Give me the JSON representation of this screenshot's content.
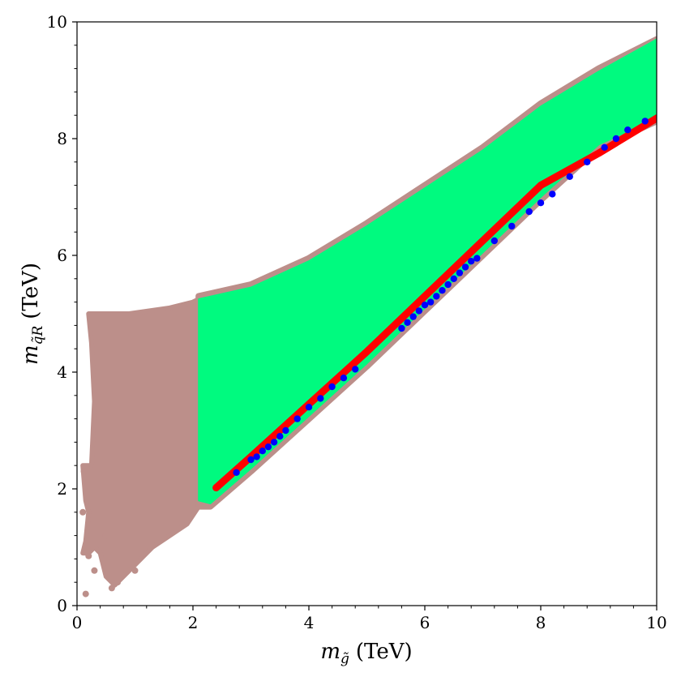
{
  "chart_data": {
    "type": "scatter",
    "title": "",
    "xlabel": {
      "symbol": "m",
      "subscript": "g̃",
      "unit": "(TeV)"
    },
    "ylabel": {
      "symbol": "m",
      "subscript": "q̃R",
      "unit": "(TeV)"
    },
    "xlim": [
      0,
      10
    ],
    "ylim": [
      0,
      10
    ],
    "xticks": [
      "0",
      "2",
      "4",
      "6",
      "8",
      "10"
    ],
    "yticks": [
      "0",
      "2",
      "4",
      "6",
      "8",
      "10"
    ],
    "grid": false,
    "legend": "none",
    "series": [
      {
        "color": "#bc8f8a",
        "kind": "region",
        "outline": [
          [
            0.1,
            0.9
          ],
          [
            0.15,
            1.1
          ],
          [
            0.2,
            1.6
          ],
          [
            0.15,
            1.8
          ],
          [
            0.1,
            2.4
          ],
          [
            0.25,
            2.4
          ],
          [
            0.3,
            3.5
          ],
          [
            0.25,
            4.5
          ],
          [
            0.2,
            5.0
          ],
          [
            0.9,
            5.0
          ],
          [
            1.6,
            5.1
          ],
          [
            2.0,
            5.2
          ],
          [
            2.1,
            5.25
          ],
          [
            2.1,
            1.7
          ],
          [
            1.9,
            1.4
          ],
          [
            1.6,
            1.2
          ],
          [
            1.3,
            1.0
          ],
          [
            1.0,
            0.7
          ],
          [
            0.8,
            0.5
          ],
          [
            0.65,
            0.35
          ],
          [
            0.5,
            0.5
          ],
          [
            0.4,
            0.9
          ],
          [
            0.3,
            1.0
          ],
          [
            0.2,
            0.9
          ]
        ],
        "points": [
          [
            0.15,
            0.2
          ],
          [
            0.2,
            0.85
          ],
          [
            0.3,
            0.6
          ],
          [
            0.6,
            0.3
          ],
          [
            0.7,
            0.4
          ],
          [
            0.1,
            1.6
          ],
          [
            0.12,
            2.3
          ],
          [
            1.0,
            0.6
          ],
          [
            0.5,
            1.2
          ]
        ]
      },
      {
        "color": "#bc8f8a",
        "kind": "edge",
        "upper": [
          [
            2.1,
            5.3
          ],
          [
            3.0,
            5.5
          ],
          [
            4.0,
            5.95
          ],
          [
            5.0,
            6.55
          ],
          [
            6.0,
            7.2
          ],
          [
            7.0,
            7.85
          ],
          [
            8.0,
            8.6
          ],
          [
            9.0,
            9.2
          ],
          [
            10.0,
            9.7
          ]
        ],
        "lower": [
          [
            2.1,
            1.7
          ],
          [
            2.3,
            1.7
          ],
          [
            3.0,
            2.3
          ],
          [
            4.0,
            3.2
          ],
          [
            5.0,
            4.1
          ],
          [
            6.0,
            5.05
          ],
          [
            7.0,
            6.0
          ],
          [
            8.0,
            6.95
          ],
          [
            9.0,
            7.85
          ],
          [
            10.0,
            8.3
          ]
        ]
      },
      {
        "color": "#00fa7f",
        "kind": "region",
        "upper": [
          [
            2.1,
            5.25
          ],
          [
            3.0,
            5.45
          ],
          [
            4.0,
            5.9
          ],
          [
            5.0,
            6.5
          ],
          [
            6.0,
            7.15
          ],
          [
            7.0,
            7.8
          ],
          [
            8.0,
            8.55
          ],
          [
            9.0,
            9.15
          ],
          [
            10.0,
            9.7
          ]
        ],
        "lower": [
          [
            2.1,
            1.8
          ],
          [
            2.3,
            1.75
          ],
          [
            3.0,
            2.35
          ],
          [
            4.0,
            3.25
          ],
          [
            5.0,
            4.15
          ],
          [
            6.0,
            5.1
          ],
          [
            7.0,
            6.05
          ],
          [
            8.0,
            7.0
          ],
          [
            9.0,
            7.9
          ],
          [
            10.0,
            8.35
          ]
        ]
      },
      {
        "color": "#ff0000",
        "kind": "band",
        "line": [
          [
            2.4,
            2.02
          ],
          [
            3.0,
            2.55
          ],
          [
            4.0,
            3.45
          ],
          [
            5.0,
            4.35
          ],
          [
            6.0,
            5.3
          ],
          [
            7.0,
            6.25
          ],
          [
            8.0,
            7.2
          ],
          [
            9.0,
            7.75
          ],
          [
            10.0,
            8.35
          ]
        ]
      },
      {
        "color": "#0000ff",
        "kind": "points",
        "points": [
          [
            2.75,
            2.28
          ],
          [
            3.0,
            2.5
          ],
          [
            3.1,
            2.55
          ],
          [
            3.2,
            2.65
          ],
          [
            3.3,
            2.72
          ],
          [
            3.4,
            2.8
          ],
          [
            3.5,
            2.9
          ],
          [
            3.6,
            3.0
          ],
          [
            3.8,
            3.2
          ],
          [
            4.0,
            3.4
          ],
          [
            4.2,
            3.55
          ],
          [
            4.4,
            3.75
          ],
          [
            4.6,
            3.9
          ],
          [
            4.8,
            4.05
          ],
          [
            5.6,
            4.75
          ],
          [
            5.7,
            4.85
          ],
          [
            5.8,
            4.95
          ],
          [
            5.9,
            5.05
          ],
          [
            6.0,
            5.15
          ],
          [
            6.1,
            5.2
          ],
          [
            6.2,
            5.3
          ],
          [
            6.3,
            5.4
          ],
          [
            6.4,
            5.5
          ],
          [
            6.5,
            5.6
          ],
          [
            6.6,
            5.7
          ],
          [
            6.7,
            5.8
          ],
          [
            6.8,
            5.9
          ],
          [
            6.9,
            5.95
          ],
          [
            7.2,
            6.25
          ],
          [
            7.5,
            6.5
          ],
          [
            7.8,
            6.75
          ],
          [
            8.0,
            6.9
          ],
          [
            8.2,
            7.05
          ],
          [
            8.5,
            7.35
          ],
          [
            8.8,
            7.6
          ],
          [
            9.1,
            7.85
          ],
          [
            9.3,
            8.0
          ],
          [
            9.5,
            8.15
          ],
          [
            9.8,
            8.3
          ]
        ]
      }
    ]
  }
}
